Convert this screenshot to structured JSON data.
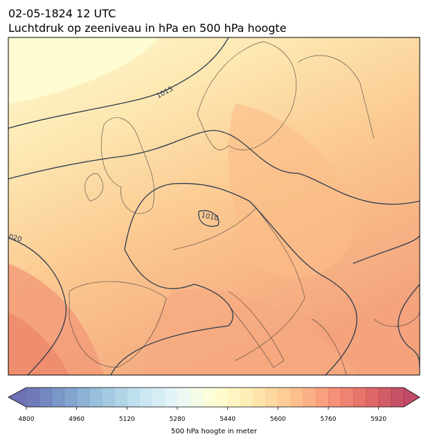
{
  "header": {
    "date": "02-05-1824 12 UTC",
    "title": "Luchtdruk op zeeniveau in hPa en 500 hPa hoogte"
  },
  "map": {
    "contour_labels": [
      "1015",
      "1010",
      "020"
    ]
  },
  "colorbar": {
    "label": "500 hPa hoogte in meter",
    "range": [
      4800,
      6000
    ],
    "segments": 30,
    "ticks": [
      4800,
      4960,
      5120,
      5280,
      5440,
      5600,
      5760,
      5920
    ],
    "colormap": [
      "#313695",
      "#4575b4",
      "#74add1",
      "#abd9e9",
      "#e0f3f8",
      "#ffffbf",
      "#fee090",
      "#fdae61",
      "#f46d43",
      "#d73027",
      "#a50026"
    ]
  }
}
